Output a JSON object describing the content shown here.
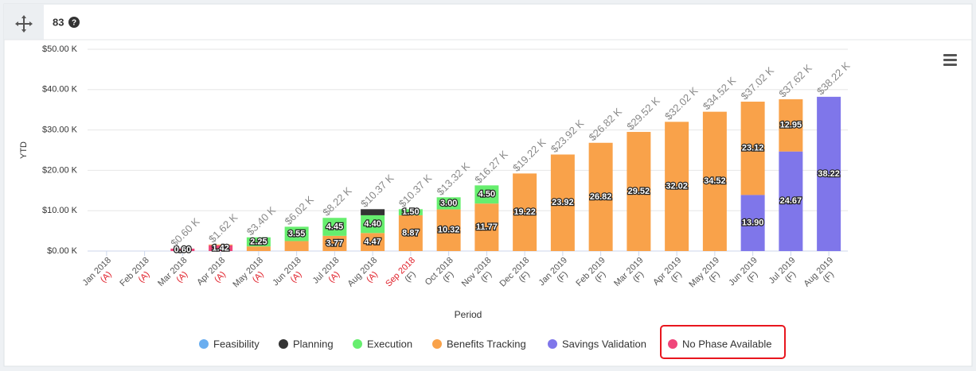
{
  "header": {
    "count": "83"
  },
  "chart_data": {
    "type": "stacked_bar",
    "y_label": "YTD",
    "x_label": "Period",
    "categories": [
      "Jan 2018",
      "Feb 2018",
      "Mar 2018",
      "Apr 2018",
      "May 2018",
      "Jun 2018",
      "Jul 2018",
      "Aug 2018",
      "Sep 2018",
      "Oct 2018",
      "Nov 2018",
      "Dec 2018",
      "Jan 2019",
      "Feb 2019",
      "Mar 2019",
      "Apr 2019",
      "May 2019",
      "Jun 2019",
      "Jul 2019",
      "Aug 2019"
    ],
    "sublabels": [
      "(A)",
      "(A)",
      "(A)",
      "(A)",
      "(A)",
      "(A)",
      "(A)",
      "(A)",
      "(F)",
      "(F)",
      "(F)",
      "(F)",
      "(F)",
      "(F)",
      "(F)",
      "(F)",
      "(F)",
      "(F)",
      "(F)",
      "(F)"
    ],
    "category_colors": [
      "#555",
      "#555",
      "#555",
      "#555",
      "#555",
      "#555",
      "#555",
      "#555",
      "#e0202a",
      "#555",
      "#555",
      "#555",
      "#555",
      "#555",
      "#555",
      "#555",
      "#555",
      "#555",
      "#555",
      "#555"
    ],
    "sublabel_colors": [
      "#e0202a",
      "#e0202a",
      "#e0202a",
      "#e0202a",
      "#e0202a",
      "#e0202a",
      "#e0202a",
      "#e0202a",
      "#555",
      "#555",
      "#555",
      "#555",
      "#555",
      "#555",
      "#555",
      "#555",
      "#555",
      "#555",
      "#555",
      "#555"
    ],
    "series": [
      {
        "name": "Feasibility",
        "color": "#6aaef0",
        "values": [
          null,
          null,
          null,
          null,
          null,
          null,
          null,
          null,
          null,
          null,
          null,
          null,
          null,
          null,
          null,
          null,
          null,
          null,
          null,
          null
        ],
        "value_labels": [
          null,
          null,
          null,
          null,
          null,
          null,
          null,
          null,
          null,
          null,
          null,
          null,
          null,
          null,
          null,
          null,
          null,
          null,
          null,
          null
        ]
      },
      {
        "name": "Planning",
        "color": "#333333",
        "values": [
          null,
          null,
          null,
          null,
          null,
          null,
          null,
          1.5,
          null,
          null,
          null,
          null,
          null,
          null,
          null,
          null,
          null,
          null,
          null,
          null
        ],
        "value_labels": [
          null,
          null,
          null,
          null,
          null,
          null,
          null,
          null,
          null,
          null,
          null,
          null,
          null,
          null,
          null,
          null,
          null,
          null,
          null,
          null
        ]
      },
      {
        "name": "Execution",
        "color": "#66ee6e",
        "values": [
          null,
          null,
          null,
          null,
          2.25,
          3.55,
          4.45,
          4.4,
          1.5,
          3,
          4.5,
          null,
          null,
          null,
          null,
          null,
          null,
          null,
          null,
          null
        ],
        "value_labels": [
          null,
          null,
          null,
          null,
          "2.25",
          "3.55",
          "4.45",
          "4.40",
          "1.50",
          "3.00",
          "4.50",
          null,
          null,
          null,
          null,
          null,
          null,
          null,
          null,
          null
        ]
      },
      {
        "name": "Benefits Tracking",
        "color": "#f9a24a",
        "values": [
          null,
          null,
          null,
          0.2,
          1.15,
          2.47,
          3.77,
          4.47,
          8.87,
          10.32,
          11.77,
          19.22,
          23.92,
          26.82,
          29.52,
          32.02,
          34.52,
          23.12,
          12.95,
          null
        ],
        "value_labels": [
          null,
          null,
          null,
          null,
          null,
          null,
          "3.77",
          "4.47",
          "8.87",
          "10.32",
          "11.77",
          "19.22",
          "23.92",
          "26.82",
          "29.52",
          "32.02",
          "34.52",
          "23.12",
          "12.95",
          null
        ]
      },
      {
        "name": "Savings Validation",
        "color": "#7f76ea",
        "values": [
          null,
          null,
          null,
          null,
          null,
          null,
          null,
          null,
          null,
          null,
          null,
          null,
          null,
          null,
          null,
          null,
          null,
          13.9,
          24.67,
          38.22
        ],
        "value_labels": [
          null,
          null,
          null,
          null,
          null,
          null,
          null,
          null,
          null,
          null,
          null,
          null,
          null,
          null,
          null,
          null,
          null,
          "13.90",
          "24.67",
          "38.22"
        ]
      },
      {
        "name": "No Phase Available",
        "color": "#f0467a",
        "values": [
          null,
          null,
          0.6,
          1.42,
          null,
          null,
          null,
          null,
          null,
          null,
          null,
          null,
          null,
          null,
          null,
          null,
          null,
          null,
          null,
          null
        ],
        "value_labels": [
          null,
          null,
          "0.60",
          "1.42",
          null,
          null,
          null,
          null,
          null,
          null,
          null,
          null,
          null,
          null,
          null,
          null,
          null,
          null,
          null,
          null
        ]
      }
    ],
    "totals": [
      null,
      null,
      0.6,
      1.62,
      3.4,
      6.02,
      8.22,
      10.37,
      10.37,
      13.32,
      16.27,
      19.22,
      23.92,
      26.82,
      29.52,
      32.02,
      34.52,
      37.02,
      37.62,
      38.22
    ],
    "total_labels": [
      null,
      null,
      "$0.60 K",
      "$1.62 K",
      "$3.40 K",
      "$6.02 K",
      "$8.22 K",
      "$10.37 K",
      "$10.37 K",
      "$13.32 K",
      "$16.27 K",
      "$19.22 K",
      "$23.92 K",
      "$26.82 K",
      "$29.52 K",
      "$32.02 K",
      "$34.52 K",
      "$37.02 K",
      "$37.62 K",
      "$38.22 K"
    ],
    "ylim": [
      0,
      50
    ],
    "yticks": [
      {
        "value": 0,
        "label": "$0.00 K"
      },
      {
        "value": 10,
        "label": "$10.00 K"
      },
      {
        "value": 20,
        "label": "$20.00 K"
      },
      {
        "value": 30,
        "label": "$30.00 K"
      },
      {
        "value": 40,
        "label": "$40.00 K"
      },
      {
        "value": 50,
        "label": "$50.00 K"
      }
    ],
    "grid": true,
    "legend": "bottom"
  }
}
